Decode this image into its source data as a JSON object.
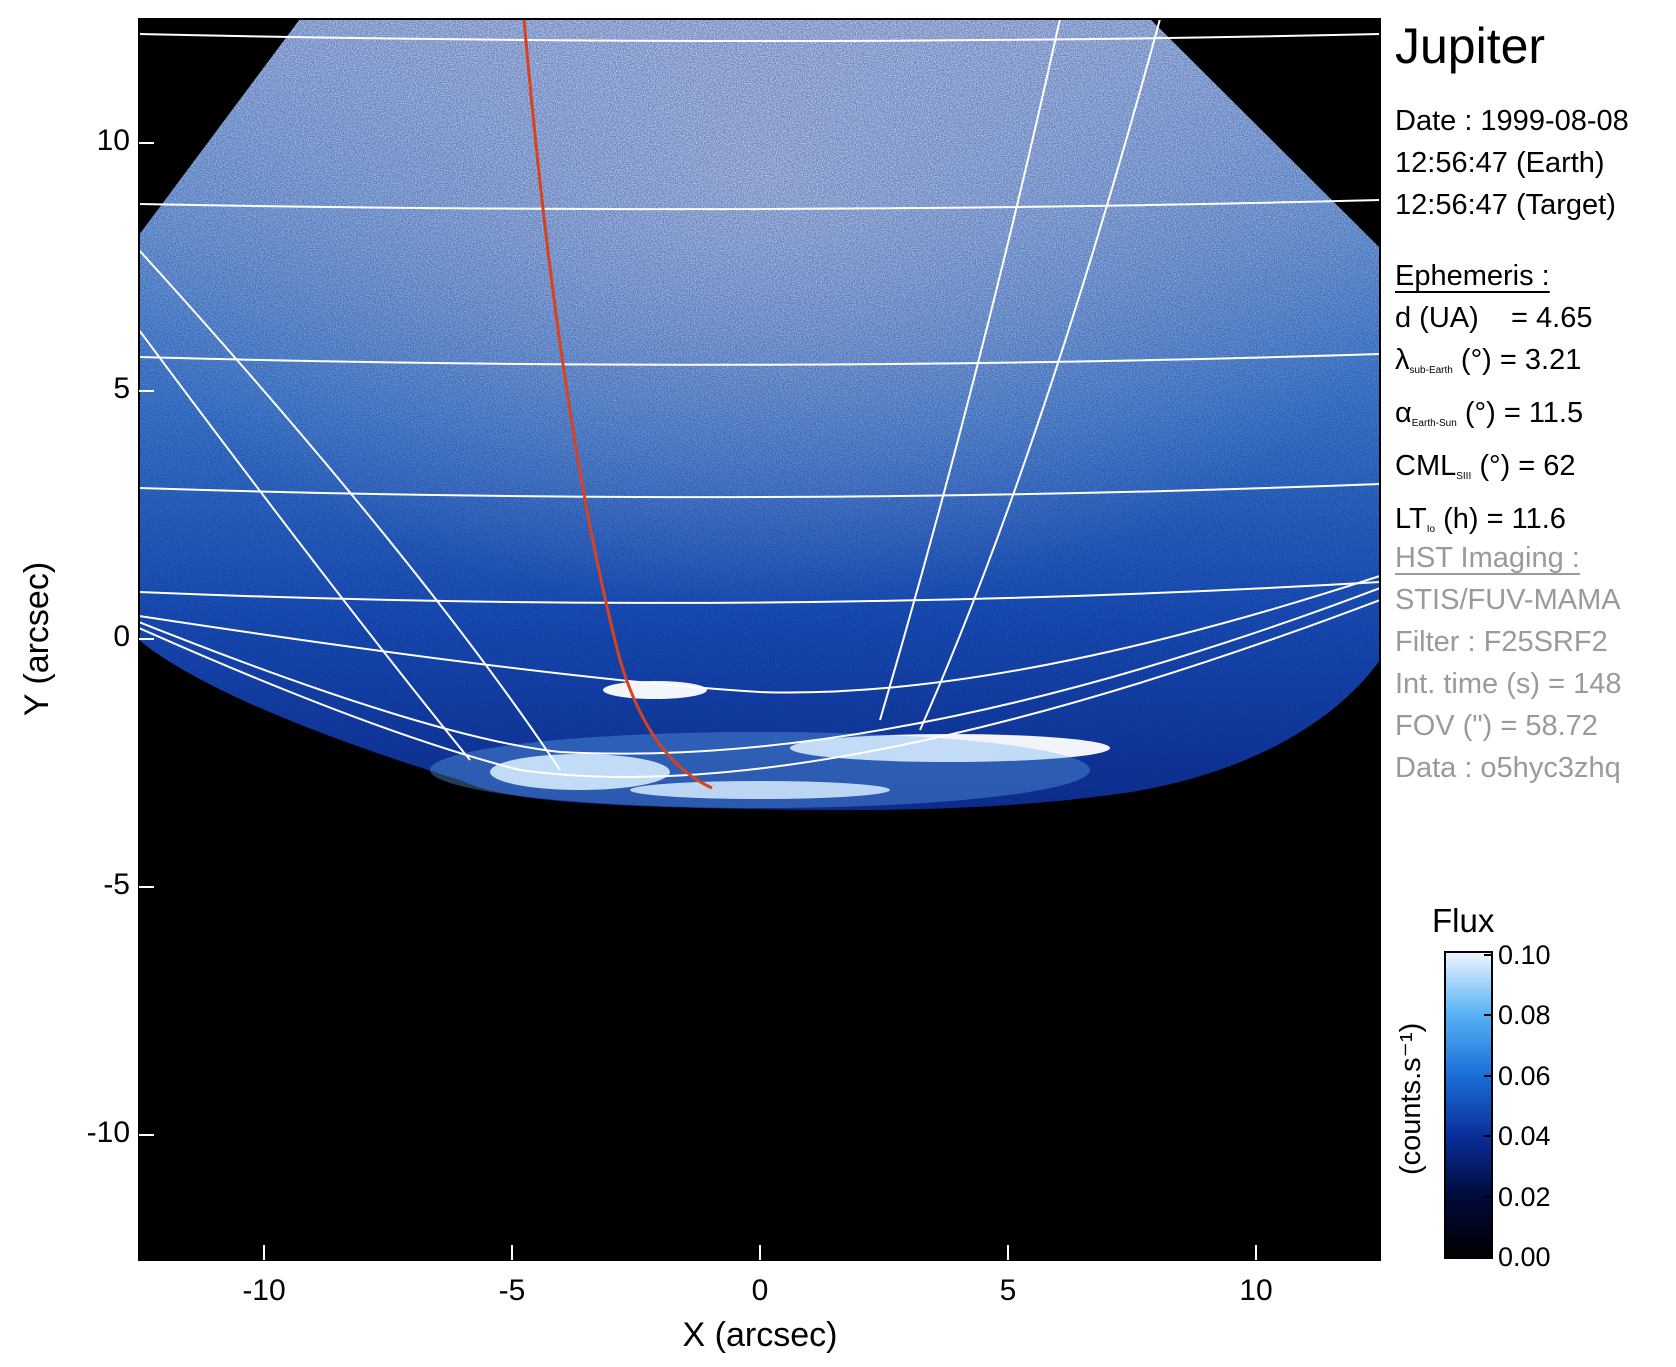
{
  "title": "Jupiter",
  "date": {
    "label": "Date : 1999-08-08",
    "earth": "12:56:47 (Earth)",
    "target": "12:56:47 (Target)"
  },
  "ephemeris": {
    "heading": "Ephemeris :",
    "d": "d (UA)    = 4.65",
    "lambda_sym": "λ",
    "lambda_sub": "sub-Earth",
    "lambda_val": "(°) = 3.21",
    "alpha_sym": "α",
    "alpha_sub": "Earth-Sun",
    "alpha_val": "(°) = 11.5",
    "cml_sym": "CML",
    "cml_sub": "SIII",
    "cml_val": "(°) = 62",
    "lt_sym": "LT",
    "lt_sub": "Io",
    "lt_val": "(h) = 11.6"
  },
  "hst": {
    "heading": "HST Imaging :",
    "instrument": "STIS/FUV-MAMA",
    "filter": "Filter : F25SRF2",
    "int_time": "Int. time (s) = 148",
    "fov": "FOV (\") = 58.72",
    "data": "Data : o5hyc3zhq"
  },
  "colorbar": {
    "title": "Flux",
    "label": "(counts.s⁻¹)",
    "ticks": [
      "0.10",
      "0.08",
      "0.06",
      "0.04",
      "0.02",
      "0.00"
    ],
    "range": [
      0.0,
      0.1
    ],
    "colors": [
      "#000000",
      "#000a3a",
      "#0a2f9a",
      "#1b6fd8",
      "#5ab2f5",
      "#eef6ff"
    ]
  },
  "axes": {
    "xlabel": "X (arcsec)",
    "ylabel": "Y (arcsec)",
    "xticks": [
      "-10",
      "-5",
      "0",
      "5",
      "10"
    ],
    "yticks": [
      "10",
      "5",
      "0",
      "-5",
      "-10"
    ],
    "xlim": [
      -12.5,
      12.5
    ],
    "ylim": [
      -12.5,
      12.5
    ]
  },
  "colors": {
    "background": "#000000",
    "grid_lines": "#ffffff",
    "io_footprint": "#d9421c"
  }
}
